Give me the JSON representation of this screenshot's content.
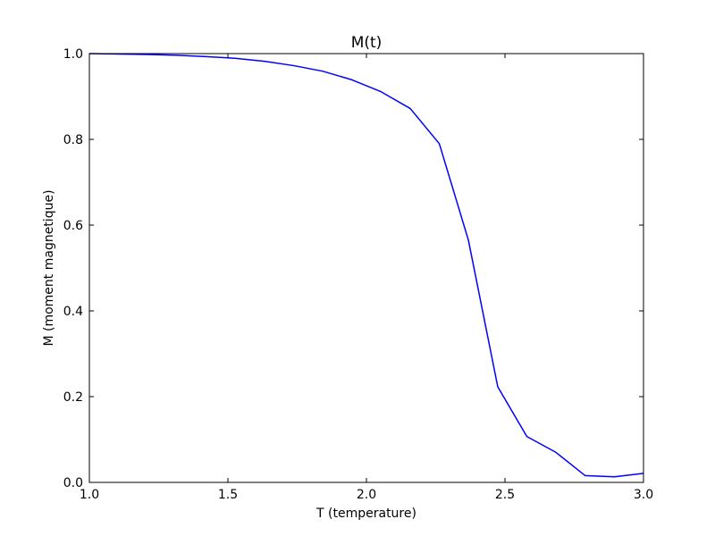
{
  "chart_data": {
    "type": "line",
    "title": "M(t)",
    "xlabel": "T (temperature)",
    "ylabel": "M (moment magnetique)",
    "xlim": [
      1.0,
      3.0
    ],
    "ylim": [
      0.0,
      1.0
    ],
    "xticks": [
      "1.0",
      "1.5",
      "2.0",
      "2.5",
      "3.0"
    ],
    "yticks": [
      "0.0",
      "0.2",
      "0.4",
      "0.6",
      "0.8",
      "1.0"
    ],
    "grid": false,
    "series": [
      {
        "color": "#0000ff",
        "x": [
          1.0,
          1.105,
          1.211,
          1.316,
          1.421,
          1.526,
          1.632,
          1.737,
          1.842,
          1.947,
          2.053,
          2.158,
          2.263,
          2.368,
          2.474,
          2.579,
          2.684,
          2.789,
          2.895,
          3.0
        ],
        "y": [
          1.0,
          0.999,
          0.998,
          0.996,
          0.993,
          0.989,
          0.982,
          0.972,
          0.959,
          0.939,
          0.911,
          0.872,
          0.79,
          0.565,
          0.223,
          0.107,
          0.07,
          0.016,
          0.013,
          0.021
        ]
      }
    ]
  }
}
